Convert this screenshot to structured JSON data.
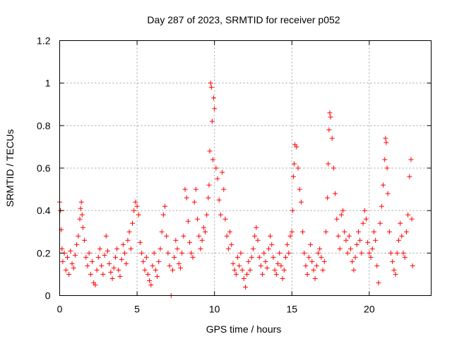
{
  "chart_data": {
    "type": "scatter",
    "title": "Day 287 of 2023, SRMTID for receiver p052",
    "xlabel": "GPS time / hours",
    "ylabel": "SRMTID / TECUs",
    "xlim": [
      0,
      24
    ],
    "ylim": [
      0,
      1.2
    ],
    "xticks": [
      0,
      5,
      10,
      15,
      20
    ],
    "xtick_labels": [
      "0",
      "5",
      "10",
      "15",
      "20"
    ],
    "yticks": [
      0,
      0.2,
      0.4,
      0.6,
      0.8,
      1.0,
      1.2
    ],
    "ytick_labels": [
      "0",
      "0.2",
      "0.4",
      "0.6",
      "0.8",
      "1",
      "1.2"
    ],
    "grid": true,
    "marker": "+",
    "color": "#ff0000",
    "series": [
      {
        "name": "SRMTID",
        "x": [
          0.0,
          0.05,
          0.1,
          0.15,
          0.2,
          0.3,
          0.4,
          0.5,
          0.6,
          0.7,
          0.8,
          0.9,
          1.0,
          1.1,
          1.2,
          1.3,
          1.35,
          1.4,
          1.45,
          1.5,
          1.6,
          1.7,
          1.8,
          1.9,
          2.0,
          2.1,
          2.2,
          2.3,
          2.4,
          2.5,
          2.6,
          2.7,
          2.8,
          2.9,
          3.0,
          3.1,
          3.2,
          3.3,
          3.4,
          3.5,
          3.6,
          3.7,
          3.8,
          3.9,
          4.0,
          4.1,
          4.2,
          4.3,
          4.4,
          4.5,
          4.6,
          4.7,
          4.8,
          4.9,
          5.0,
          5.1,
          5.2,
          5.3,
          5.4,
          5.5,
          5.6,
          5.7,
          5.8,
          5.9,
          6.0,
          6.1,
          6.2,
          6.3,
          6.4,
          6.5,
          6.6,
          6.7,
          6.8,
          6.9,
          7.0,
          7.1,
          7.2,
          7.3,
          7.4,
          7.5,
          7.6,
          7.7,
          7.8,
          7.9,
          8.0,
          8.1,
          8.2,
          8.3,
          8.4,
          8.5,
          8.6,
          8.7,
          8.8,
          8.9,
          9.0,
          9.1,
          9.2,
          9.3,
          9.4,
          9.5,
          9.6,
          9.65,
          9.7,
          9.75,
          9.8,
          9.85,
          9.9,
          9.95,
          10.0,
          10.1,
          10.2,
          10.3,
          10.4,
          10.5,
          10.6,
          10.7,
          10.8,
          10.9,
          11.0,
          11.1,
          11.2,
          11.3,
          11.4,
          11.5,
          11.6,
          11.7,
          11.8,
          11.9,
          12.0,
          12.1,
          12.2,
          12.3,
          12.4,
          12.5,
          12.6,
          12.7,
          12.8,
          12.9,
          13.0,
          13.1,
          13.2,
          13.3,
          13.4,
          13.5,
          13.6,
          13.7,
          13.8,
          13.9,
          14.0,
          14.1,
          14.2,
          14.3,
          14.4,
          14.5,
          14.6,
          14.7,
          14.8,
          14.9,
          15.0,
          15.05,
          15.1,
          15.15,
          15.2,
          15.3,
          15.4,
          15.5,
          15.6,
          15.7,
          15.8,
          15.9,
          16.0,
          16.1,
          16.2,
          16.3,
          16.4,
          16.5,
          16.6,
          16.7,
          16.8,
          16.9,
          17.0,
          17.1,
          17.2,
          17.3,
          17.35,
          17.4,
          17.45,
          17.5,
          17.6,
          17.7,
          17.8,
          17.9,
          18.0,
          18.1,
          18.2,
          18.3,
          18.4,
          18.5,
          18.6,
          18.7,
          18.8,
          18.9,
          19.0,
          19.1,
          19.2,
          19.3,
          19.4,
          19.5,
          19.6,
          19.7,
          19.8,
          19.9,
          20.0,
          20.1,
          20.2,
          20.3,
          20.4,
          20.5,
          20.6,
          20.7,
          20.8,
          20.9,
          21.0,
          21.05,
          21.1,
          21.15,
          21.2,
          21.3,
          21.4,
          21.5,
          21.6,
          21.7,
          21.8,
          21.9,
          22.0,
          22.1,
          22.2,
          22.3,
          22.4,
          22.5,
          22.6,
          22.7,
          22.75,
          22.8
        ],
        "y": [
          0.44,
          0.4,
          0.31,
          0.22,
          0.16,
          0.2,
          0.12,
          0.18,
          0.1,
          0.21,
          0.15,
          0.13,
          0.19,
          0.24,
          0.28,
          0.36,
          0.41,
          0.44,
          0.38,
          0.32,
          0.26,
          0.18,
          0.14,
          0.2,
          0.1,
          0.16,
          0.06,
          0.05,
          0.12,
          0.18,
          0.22,
          0.14,
          0.1,
          0.19,
          0.28,
          0.21,
          0.15,
          0.11,
          0.08,
          0.13,
          0.18,
          0.22,
          0.12,
          0.09,
          0.17,
          0.24,
          0.2,
          0.15,
          0.26,
          0.3,
          0.22,
          0.34,
          0.4,
          0.44,
          0.42,
          0.38,
          0.25,
          0.2,
          0.16,
          0.12,
          0.18,
          0.1,
          0.07,
          0.05,
          0.14,
          0.2,
          0.12,
          0.09,
          0.16,
          0.22,
          0.3,
          0.38,
          0.42,
          0.28,
          0.2,
          0.14,
          0.0,
          0.12,
          0.18,
          0.26,
          0.22,
          0.15,
          0.13,
          0.2,
          0.28,
          0.5,
          0.46,
          0.35,
          0.25,
          0.2,
          0.18,
          0.44,
          0.5,
          0.36,
          0.28,
          0.22,
          0.26,
          0.32,
          0.3,
          0.38,
          0.46,
          0.52,
          0.68,
          1.0,
          0.98,
          0.82,
          0.64,
          0.93,
          0.88,
          0.6,
          0.55,
          0.45,
          0.38,
          0.58,
          0.5,
          0.36,
          0.28,
          0.22,
          0.3,
          0.24,
          0.15,
          0.12,
          0.1,
          0.18,
          0.14,
          0.2,
          0.12,
          0.08,
          0.04,
          0.1,
          0.16,
          0.12,
          0.18,
          0.22,
          0.28,
          0.32,
          0.26,
          0.18,
          0.14,
          0.1,
          0.2,
          0.16,
          0.13,
          0.22,
          0.28,
          0.24,
          0.18,
          0.12,
          0.1,
          0.15,
          0.2,
          0.14,
          0.08,
          0.12,
          0.18,
          0.24,
          0.2,
          0.28,
          0.3,
          0.4,
          0.56,
          0.62,
          0.71,
          0.7,
          0.6,
          0.5,
          0.44,
          0.3,
          0.2,
          0.14,
          0.1,
          0.18,
          0.24,
          0.16,
          0.12,
          0.08,
          0.14,
          0.2,
          0.22,
          0.18,
          0.12,
          0.16,
          0.3,
          0.46,
          0.62,
          0.78,
          0.86,
          0.84,
          0.74,
          0.6,
          0.48,
          0.36,
          0.28,
          0.22,
          0.38,
          0.4,
          0.3,
          0.26,
          0.2,
          0.28,
          0.22,
          0.16,
          0.12,
          0.18,
          0.24,
          0.3,
          0.26,
          0.2,
          0.34,
          0.4,
          0.36,
          0.25,
          0.2,
          0.18,
          0.22,
          0.3,
          0.26,
          0.14,
          0.06,
          0.34,
          0.42,
          0.52,
          0.64,
          0.74,
          0.72,
          0.6,
          0.48,
          0.3,
          0.2,
          0.16,
          0.12,
          0.1,
          0.2,
          0.26,
          0.34,
          0.28,
          0.2,
          0.18,
          0.3,
          0.38,
          0.56,
          0.64,
          0.36,
          0.14
        ]
      }
    ]
  }
}
